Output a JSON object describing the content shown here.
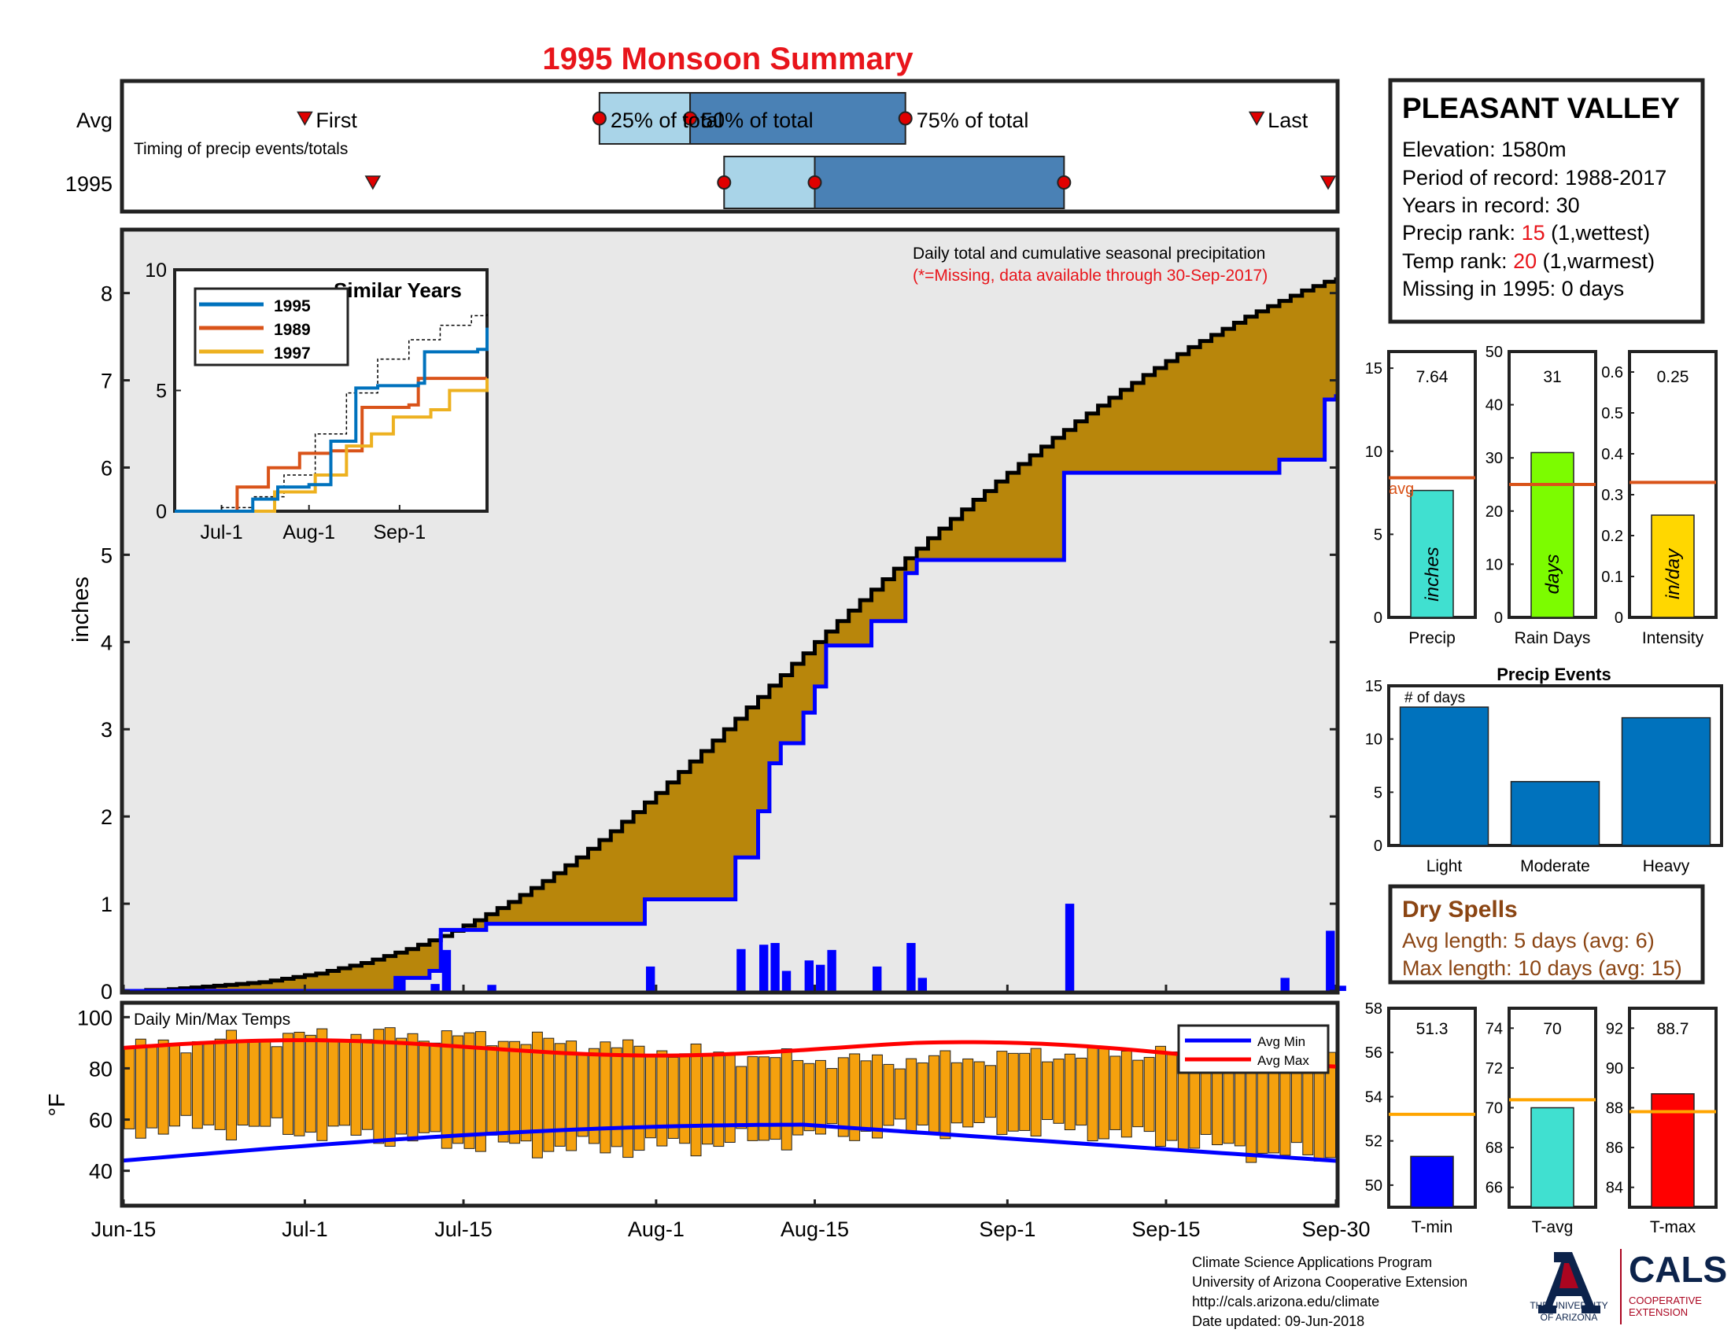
{
  "title": "1995 Monsoon Summary",
  "timing": {
    "row_labels": [
      "Avg",
      "1995"
    ],
    "caption": "Timing of precip events/totals",
    "labels": {
      "first": "First",
      "p25": "25% of total",
      "p50": "50% of total",
      "p75": "75% of total",
      "last": "Last"
    },
    "avg": {
      "first": "Jul-1",
      "p25": "Jul-27",
      "p50": "Aug-4",
      "p75": "Aug-23",
      "last": "Sep-23"
    },
    "year": {
      "first": "Jul-7",
      "p25": "Aug-7",
      "p50": "Aug-15",
      "p75": "Sep-6",
      "last": "Sep-30"
    },
    "colors": {
      "light": "#a9d4e8",
      "dark": "#4a81b5",
      "marker": "#e00000"
    }
  },
  "station": {
    "name": "PLEASANT VALLEY",
    "elevation": "Elevation: 1580m",
    "period": "Period of record: 1988-2017",
    "years": "Years in record: 30",
    "precip_rank_prefix": "Precip rank: ",
    "precip_rank_value": "15",
    "precip_rank_suffix": " (1,wettest)",
    "temp_rank_prefix": "Temp rank: ",
    "temp_rank_value": "20",
    "temp_rank_suffix": " (1,warmest)",
    "missing": "Missing in 1995: 0 days"
  },
  "main_chart": {
    "annotation": "Daily total and cumulative seasonal precipitation",
    "annotation_note": "(*=Missing, data available through 30-Sep-2017)",
    "ylabel": "inches",
    "ylim": [
      0,
      8.7
    ],
    "yticks": [
      0,
      1,
      2,
      3,
      4,
      5,
      6,
      7,
      8
    ],
    "xlim": [
      "Jun-15",
      "Sep-30"
    ],
    "xticks": [
      "Jun-15",
      "Jul-1",
      "Jul-15",
      "Aug-1",
      "Aug-15",
      "Sep-1",
      "Sep-15",
      "Sep-30"
    ]
  },
  "temp_chart": {
    "title": "Daily Min/Max Temps",
    "ylabel": "°F",
    "ylim": [
      27,
      105
    ],
    "yticks": [
      40,
      60,
      80,
      100
    ],
    "legend": [
      "Avg Min",
      "Avg Max"
    ]
  },
  "inset": {
    "title": "Similar Years",
    "ylim": [
      0,
      10
    ],
    "yticks": [
      0,
      5,
      10
    ],
    "xticks": [
      "Jul-1",
      "Aug-1",
      "Sep-1"
    ],
    "legend": [
      "1995",
      "1989",
      "1997"
    ]
  },
  "small_bars": {
    "precip": {
      "label": "Precip",
      "value_text": "7.64",
      "unit": "inches",
      "avg_text": "avg",
      "ylim": [
        0,
        16
      ],
      "yticks": [
        0,
        5,
        10,
        15
      ]
    },
    "raindays": {
      "label": "Rain Days",
      "value_text": "31",
      "unit": "days",
      "ylim": [
        0,
        50
      ],
      "yticks": [
        0,
        10,
        20,
        30,
        40,
        50
      ]
    },
    "intensity": {
      "label": "Intensity",
      "value_text": "0.25",
      "unit": "in/day",
      "ylim": [
        0,
        0.65
      ],
      "yticks": [
        0,
        0.1,
        0.2,
        0.3,
        0.4,
        0.5,
        0.6
      ]
    }
  },
  "events": {
    "title": "Precip Events",
    "ylabel_note": "# of days",
    "categories": [
      "Light",
      "Moderate",
      "Heavy"
    ],
    "ylim": [
      0,
      15
    ],
    "yticks": [
      0,
      5,
      10,
      15
    ]
  },
  "dry_spells": {
    "title": "Dry Spells",
    "avg_line": "Avg length: 5 days (avg: 6)",
    "max_line": "Max length: 10 days (avg: 15)"
  },
  "temp_bars": {
    "tmin": {
      "label": "T-min",
      "value_text": "51.3",
      "ylim": [
        49,
        58
      ],
      "yticks": [
        50,
        52,
        54,
        56,
        58
      ]
    },
    "tavg": {
      "label": "T-avg",
      "value_text": "70",
      "ylim": [
        65,
        75
      ],
      "yticks": [
        66,
        68,
        70,
        72,
        74
      ]
    },
    "tmax": {
      "label": "T-max",
      "value_text": "88.7",
      "ylim": [
        83,
        93
      ],
      "yticks": [
        84,
        86,
        88,
        90,
        92
      ]
    }
  },
  "footer": {
    "line1": "Climate Science Applications Program",
    "line2": "University of Arizona Cooperative Extension",
    "line3": "http://cals.arizona.edu/climate",
    "line4": " Date updated: 09-Jun-2018",
    "logo_ua_line1": "THE UNIVERSITY",
    "logo_ua_line2": "OF ARIZONA",
    "logo_cals": "CALS",
    "logo_cals_line1": "COOPERATIVE",
    "logo_cals_line2": "EXTENSION"
  },
  "colors": {
    "title": "#e8151b",
    "brown": "#b8860b",
    "blue": "#0000ff",
    "gray": "#e8e8e8",
    "orange_bar": "#f5a10e",
    "red": "#ff0000",
    "rank_red": "#e8151b",
    "avg_line": "#d95319",
    "precip_bar": "#40e0d0",
    "days_bar": "#7cfc00",
    "intensity_bar": "#ffd700",
    "event_bar": "#0072bd",
    "dry": "#8b4513",
    "tmin_bar": "#0000ff",
    "tavg_bar": "#40e0d0",
    "tmax_bar": "#ff0000",
    "tline": "#ffa500",
    "y1995": "#0072bd",
    "y1989": "#d95319",
    "y1997": "#edb120",
    "ua_red": "#ab0520",
    "ua_blue": "#0c234b"
  },
  "chart_data": [
    {
      "type": "area",
      "name": "cumulative",
      "x_start": "Jun-15",
      "avg_cumulative": [
        0,
        0,
        0.01,
        0.01,
        0.02,
        0.03,
        0.04,
        0.05,
        0.06,
        0.07,
        0.08,
        0.09,
        0.1,
        0.12,
        0.14,
        0.16,
        0.18,
        0.2,
        0.23,
        0.26,
        0.29,
        0.32,
        0.36,
        0.4,
        0.44,
        0.48,
        0.53,
        0.58,
        0.63,
        0.69,
        0.75,
        0.81,
        0.88,
        0.95,
        1.02,
        1.1,
        1.18,
        1.26,
        1.35,
        1.44,
        1.53,
        1.63,
        1.73,
        1.83,
        1.94,
        2.05,
        2.16,
        2.27,
        2.39,
        2.51,
        2.63,
        2.75,
        2.87,
        3.0,
        3.12,
        3.25,
        3.37,
        3.5,
        3.62,
        3.75,
        3.87,
        4.0,
        4.12,
        4.24,
        4.36,
        4.48,
        4.6,
        4.72,
        4.84,
        4.96,
        5.07,
        5.19,
        5.3,
        5.41,
        5.52,
        5.63,
        5.73,
        5.84,
        5.94,
        6.04,
        6.14,
        6.24,
        6.34,
        6.43,
        6.53,
        6.62,
        6.71,
        6.8,
        6.89,
        6.97,
        7.06,
        7.14,
        7.22,
        7.3,
        7.38,
        7.45,
        7.52,
        7.59,
        7.66,
        7.73,
        7.79,
        7.85,
        7.91,
        7.97,
        8.03,
        8.08,
        8.13,
        8.18
      ],
      "daily_1995": {
        "Jul-9": 0.15,
        "Jul-12": 0.08,
        "Jul-13": 0.47,
        "Jul-17": 0.07,
        "Jul-31": 0.28,
        "Aug-8": 0.48,
        "Aug-10": 0.53,
        "Aug-11": 0.55,
        "Aug-12": 0.23,
        "Aug-14": 0.35,
        "Aug-15": 0.3,
        "Aug-16": 0.47,
        "Aug-20": 0.28,
        "Aug-23": 0.55,
        "Aug-24": 0.15,
        "Sep-6": 1.0,
        "Sep-25": 0.15,
        "Sep-29": 0.69,
        "Sep-30": 0.06
      },
      "yearly_total_1995": 7.64
    },
    {
      "type": "bar",
      "name": "daily temperatures",
      "note": "daily min/max bars for Jun-15 through Sep-30, with Avg Min and Avg Max climatology lines"
    },
    {
      "type": "line",
      "name": "Similar Years",
      "series": [
        {
          "name": "1995"
        },
        {
          "name": "1989"
        },
        {
          "name": "1997"
        }
      ]
    },
    {
      "type": "bar",
      "name": "seasonal totals",
      "categories": [
        "Precip",
        "Rain Days",
        "Intensity"
      ],
      "values": [
        7.64,
        31,
        0.25
      ],
      "averages": [
        8.4,
        25,
        0.33
      ]
    },
    {
      "type": "bar",
      "name": "Precip Events",
      "categories": [
        "Light",
        "Moderate",
        "Heavy"
      ],
      "values": [
        13,
        6,
        12
      ]
    },
    {
      "type": "bar",
      "name": "temperature means",
      "categories": [
        "T-min",
        "T-avg",
        "T-max"
      ],
      "values": [
        51.3,
        70,
        88.7
      ],
      "averages": [
        53.2,
        70.4,
        87.8
      ]
    }
  ]
}
